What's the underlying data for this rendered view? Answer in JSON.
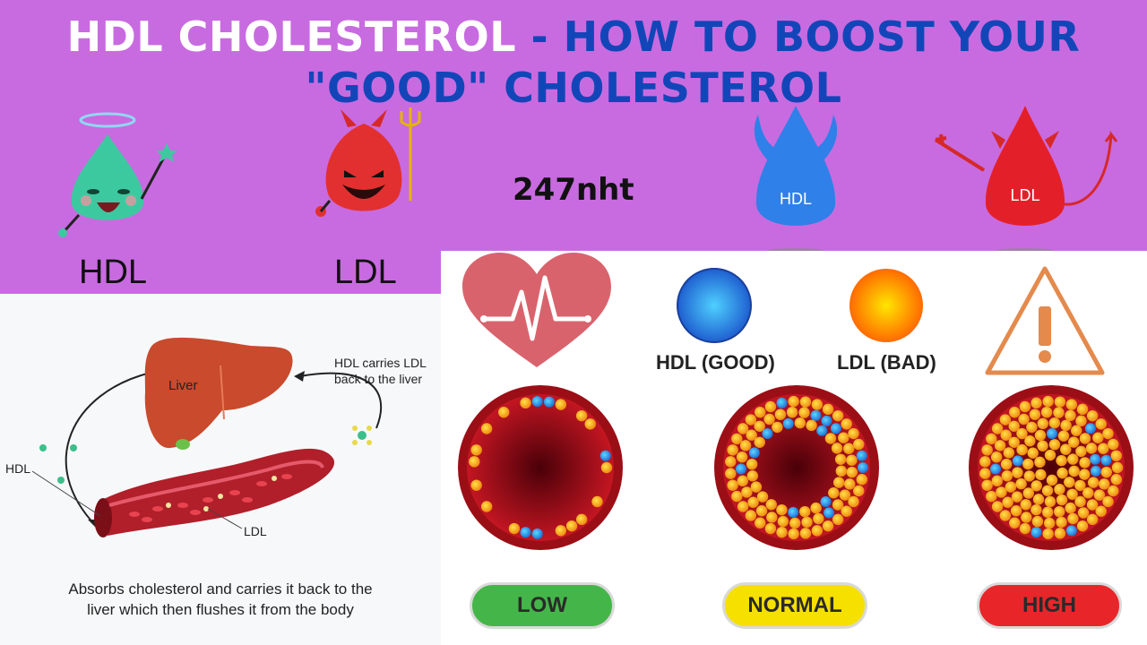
{
  "title": {
    "part1": "HDL CHOLESTEROL",
    "separator": " - ",
    "part2": "HOW TO BOOST YOUR",
    "line2": "\"GOOD\" CHOLESTEROL"
  },
  "watermark": "247nht",
  "mascots": {
    "hdl_label": "HDL",
    "ldl_label": "LDL",
    "hdl_drop_text": "HDL",
    "ldl_drop_text": "LDL"
  },
  "diagram": {
    "liver_label": "Liver",
    "hdl_carries_line1": "HDL carries LDL",
    "hdl_carries_line2": "back to the liver",
    "hdl_label": "HDL",
    "ldl_label": "LDL",
    "caption_line1": "Absorbs cholesterol and carries it back to the",
    "caption_line2": "liver which then flushes it from the body"
  },
  "legend": {
    "hdl": "HDL (GOOD)",
    "ldl": "LDL (BAD)"
  },
  "levels": [
    {
      "label": "LOW",
      "color": "#44b649"
    },
    {
      "label": "NORMAL",
      "color": "#f5e000"
    },
    {
      "label": "HIGH",
      "color": "#e8262a"
    }
  ],
  "colors": {
    "background": "#c86be0",
    "title_blue": "#1246b8",
    "hdl_blue": "#2f80e8",
    "ldl_red": "#e3202a",
    "heart": "#d9636d",
    "warning": "#e48a4d"
  },
  "icons": [
    "angel-drop-icon",
    "devil-drop-icon",
    "winged-blue-drop-icon",
    "devil-red-drop-icon",
    "heart-pulse-icon",
    "warning-icon"
  ]
}
